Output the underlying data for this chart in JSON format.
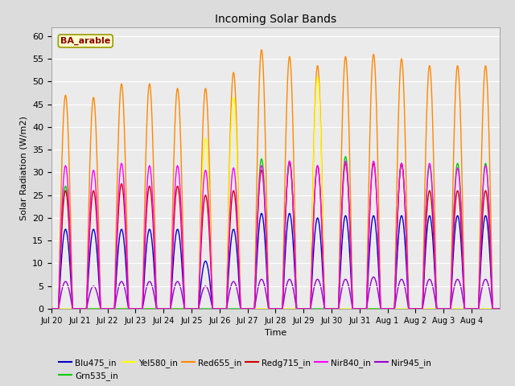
{
  "title": "Incoming Solar Bands",
  "xlabel": "Time",
  "ylabel": "Solar Radiation (W/m2)",
  "annotation": "BA_arable",
  "ylim": [
    0,
    62
  ],
  "yticks": [
    0,
    5,
    10,
    15,
    20,
    25,
    30,
    35,
    40,
    45,
    50,
    55,
    60
  ],
  "n_days": 16,
  "samples_per_day": 288,
  "series": [
    {
      "label": "Blu475_in",
      "color": "#0000cc",
      "peak_values": [
        17.5,
        17.5,
        17.5,
        17.5,
        17.5,
        10.5,
        17.5,
        21.0,
        21.0,
        20.0,
        20.5,
        20.5,
        20.5,
        20.5,
        20.5,
        20.5
      ],
      "zorder": 5,
      "lw": 1.0
    },
    {
      "label": "Grn535_in",
      "color": "#00cc00",
      "peak_values": [
        27.0,
        0,
        0,
        0,
        0,
        0,
        0,
        33.0,
        32.0,
        0,
        33.5,
        0,
        32.0,
        31.5,
        32.0,
        32.0
      ],
      "zorder": 6,
      "lw": 1.0
    },
    {
      "label": "Yel580_in",
      "color": "#ffff00",
      "peak_values": [
        0,
        0,
        0,
        0,
        0,
        37.5,
        46.5,
        0,
        0,
        51.0,
        0,
        0,
        0,
        0,
        0,
        0
      ],
      "zorder": 4,
      "lw": 1.0
    },
    {
      "label": "Red655_in",
      "color": "#ff8800",
      "peak_values": [
        47.0,
        46.5,
        49.5,
        49.5,
        48.5,
        48.5,
        52.0,
        57.0,
        55.5,
        53.5,
        55.5,
        56.0,
        55.0,
        53.5,
        53.5,
        53.5
      ],
      "zorder": 3,
      "lw": 1.0
    },
    {
      "label": "Redg715_in",
      "color": "#cc0000",
      "peak_values": [
        26.0,
        26.0,
        27.5,
        27.0,
        27.0,
        25.0,
        26.0,
        30.5,
        32.5,
        31.5,
        32.0,
        32.0,
        32.0,
        26.0,
        26.0,
        26.0
      ],
      "zorder": 7,
      "lw": 1.0
    },
    {
      "label": "Nir840_in",
      "color": "#ff00ff",
      "peak_values": [
        31.5,
        30.5,
        32.0,
        31.5,
        31.5,
        30.5,
        31.0,
        31.5,
        32.5,
        31.5,
        32.5,
        32.5,
        32.0,
        32.0,
        31.0,
        31.5
      ],
      "zorder": 8,
      "lw": 1.0
    },
    {
      "label": "Nir945_in",
      "color": "#9900cc",
      "peak_values": [
        6.0,
        5.0,
        6.0,
        6.0,
        6.0,
        5.0,
        6.0,
        6.5,
        6.5,
        6.5,
        6.5,
        7.0,
        6.5,
        6.5,
        6.5,
        6.5
      ],
      "zorder": 2,
      "lw": 1.0
    }
  ],
  "bg_color": "#dcdcdc",
  "plot_bg_color": "#ebebeb",
  "grid_color": "#ffffff",
  "xtick_labels": [
    "Jul 20",
    "Jul 21",
    "Jul 22",
    "Jul 23",
    "Jul 24",
    "Jul 25",
    "Jul 26",
    "Jul 27",
    "Jul 28",
    "Jul 29",
    "Jul 30",
    "Jul 31",
    "Aug 1",
    "Aug 2",
    "Aug 3",
    "Aug 4"
  ]
}
